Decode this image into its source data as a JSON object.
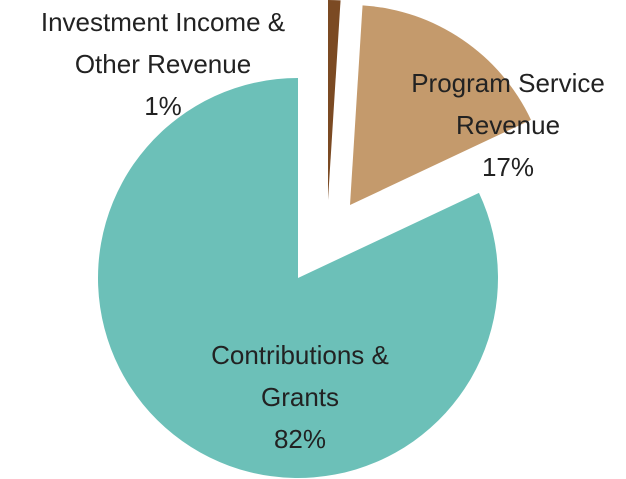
{
  "chart_data": {
    "type": "pie",
    "categories": [
      "Investment Income & Other Revenue",
      "Program Service Revenue",
      "Contributions & Grants"
    ],
    "values": [
      1,
      17,
      82
    ],
    "value_labels": [
      "1%",
      "17%",
      "82%"
    ],
    "colors": [
      "#7b4a23",
      "#c49a6c",
      "#6cc0b8"
    ]
  }
}
